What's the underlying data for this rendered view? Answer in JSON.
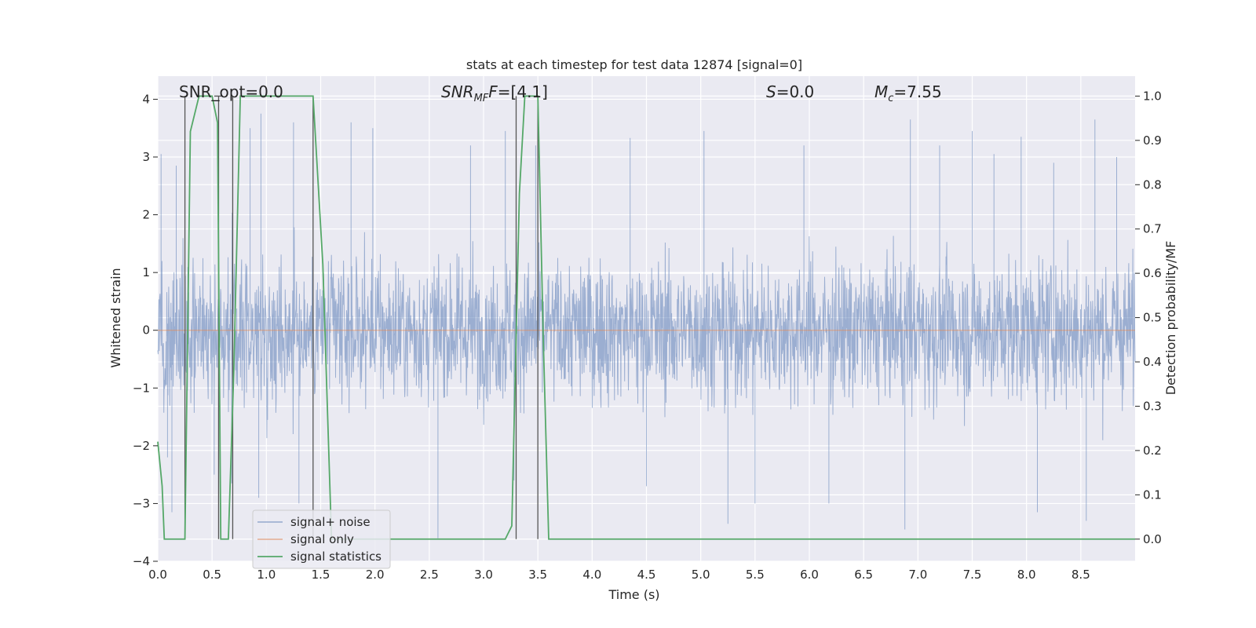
{
  "chart_data": {
    "type": "line",
    "title": "stats at each timestep for test data 12874 [signal=0]",
    "xlabel": "Time (s)",
    "ylabel": "Whitened strain",
    "ylabel_right": "Detection probability/MF",
    "xlim": [
      0.0,
      9.0
    ],
    "ylim": [
      -4,
      4.4
    ],
    "ylim_right": [
      -0.05,
      1.045
    ],
    "x_ticks": [
      "0.0",
      "0.5",
      "1.0",
      "1.5",
      "2.0",
      "2.5",
      "3.0",
      "3.5",
      "4.0",
      "4.5",
      "5.0",
      "5.5",
      "6.0",
      "6.5",
      "7.0",
      "7.5",
      "8.0",
      "8.5"
    ],
    "y_ticks": [
      "4",
      "3",
      "2",
      "1",
      "0",
      "−1",
      "−2",
      "−3",
      "−4"
    ],
    "y_right_ticks": [
      "1.0",
      "0.9",
      "0.8",
      "0.7",
      "0.6",
      "0.5",
      "0.4",
      "0.3",
      "0.2",
      "0.1",
      "0.0"
    ],
    "grid": true,
    "legend_position": "lower-left",
    "colors": {
      "background": "#EAEAF2",
      "grid": "#FFFFFF",
      "noise": "#4C72B0",
      "signal_only": "#DD8452",
      "statistics": "#55A868",
      "markers": "#555555"
    },
    "annotations": {
      "snr_opt": "SNR_opt=0.0",
      "snr_mf_base": "SNR",
      "snr_mf_sub": "MF",
      "snr_mf_rest": "=[4.1]",
      "s_label": "S",
      "s_rest": "=0.0",
      "mc_base": "M",
      "mc_sub": "c",
      "mc_rest": "=7.55"
    },
    "series": [
      {
        "name": "signal+ noise",
        "description_note": "dense whitened strain noise, approx. zero-mean with amplitude up to about ±3.7",
        "spikes": [
          [
            0.03,
            3.05
          ],
          [
            0.09,
            -2.2
          ],
          [
            0.13,
            -3.15
          ],
          [
            0.17,
            2.85
          ],
          [
            0.52,
            -2.5
          ],
          [
            0.68,
            -2.65
          ],
          [
            0.85,
            3.5
          ],
          [
            0.95,
            3.75
          ],
          [
            0.93,
            -2.9
          ],
          [
            1.25,
            3.6
          ],
          [
            1.3,
            -3.0
          ],
          [
            1.78,
            3.6
          ],
          [
            1.98,
            3.5
          ],
          [
            2.58,
            -3.6
          ],
          [
            2.88,
            3.2
          ],
          [
            3.2,
            3.45
          ],
          [
            3.28,
            -2.6
          ],
          [
            3.48,
            3.2
          ],
          [
            4.35,
            3.33
          ],
          [
            4.5,
            -2.7
          ],
          [
            5.03,
            3.45
          ],
          [
            5.25,
            -3.35
          ],
          [
            5.5,
            -3.0
          ],
          [
            5.95,
            3.2
          ],
          [
            6.18,
            -3.0
          ],
          [
            6.88,
            -3.45
          ],
          [
            6.93,
            3.65
          ],
          [
            7.2,
            3.2
          ],
          [
            7.5,
            3.45
          ],
          [
            7.7,
            3.05
          ],
          [
            7.95,
            3.35
          ],
          [
            8.1,
            -3.15
          ],
          [
            8.25,
            2.9
          ],
          [
            8.55,
            -3.3
          ],
          [
            8.63,
            3.65
          ],
          [
            8.83,
            3.0
          ]
        ]
      },
      {
        "name": "signal only",
        "points": [
          [
            0.0,
            0.0
          ],
          [
            9.0,
            0.0
          ]
        ]
      },
      {
        "name": "signal statistics",
        "axis": "right",
        "points": [
          [
            0.0,
            0.22
          ],
          [
            0.04,
            0.12
          ],
          [
            0.06,
            0.0
          ],
          [
            0.25,
            0.0
          ],
          [
            0.3,
            0.92
          ],
          [
            0.38,
            1.0
          ],
          [
            0.5,
            1.0
          ],
          [
            0.55,
            0.94
          ],
          [
            0.58,
            0.0
          ],
          [
            0.65,
            0.0
          ],
          [
            0.7,
            0.38
          ],
          [
            0.76,
            1.0
          ],
          [
            1.43,
            1.0
          ],
          [
            1.52,
            0.62
          ],
          [
            1.6,
            0.0
          ],
          [
            1.72,
            0.0
          ],
          [
            3.2,
            0.0
          ],
          [
            3.26,
            0.03
          ],
          [
            3.33,
            0.78
          ],
          [
            3.38,
            1.0
          ],
          [
            3.5,
            1.0
          ],
          [
            3.55,
            0.45
          ],
          [
            3.6,
            0.0
          ],
          [
            3.85,
            0.0
          ],
          [
            3.9,
            0.0
          ],
          [
            9.0,
            0.0
          ]
        ]
      }
    ],
    "markers_x": [
      0.25,
      0.56,
      0.69,
      1.43,
      3.3,
      3.5
    ]
  }
}
